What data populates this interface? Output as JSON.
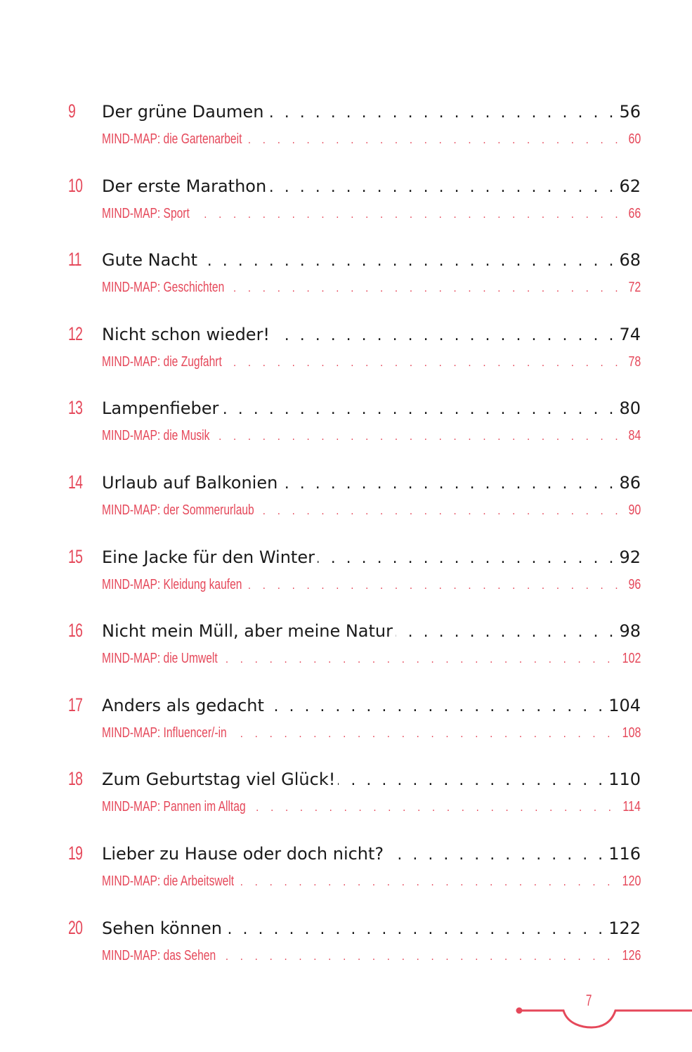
{
  "page": {
    "number": "7",
    "accent_color": "#e5485a",
    "text_color": "#1a1a1a"
  },
  "toc": {
    "entries": [
      {
        "num": "9",
        "title": "Der grüne Daumen",
        "page": "56",
        "sub_prefix": "MIND-MAP:",
        "sub_title": "die Gartenarbeit",
        "sub_page": "60"
      },
      {
        "num": "10",
        "title": "Der erste Marathon",
        "page": "62",
        "sub_prefix": "MIND-MAP:",
        "sub_title": "Sport",
        "sub_page": "66"
      },
      {
        "num": "11",
        "title": "Gute Nacht",
        "page": "68",
        "sub_prefix": "MIND-MAP:",
        "sub_title": "Geschichten",
        "sub_page": "72"
      },
      {
        "num": "12",
        "title": "Nicht schon wieder!",
        "page": "74",
        "sub_prefix": "MIND-MAP:",
        "sub_title": "die Zugfahrt",
        "sub_page": "78"
      },
      {
        "num": "13",
        "title": "Lampenfieber",
        "page": "80",
        "sub_prefix": "MIND-MAP:",
        "sub_title": "die Musik",
        "sub_page": "84"
      },
      {
        "num": "14",
        "title": "Urlaub auf Balkonien",
        "page": "86",
        "sub_prefix": "MIND-MAP:",
        "sub_title": "der Sommerurlaub",
        "sub_page": "90"
      },
      {
        "num": "15",
        "title": "Eine Jacke für den Winter",
        "page": "92",
        "sub_prefix": "MIND-MAP:",
        "sub_title": "Kleidung kaufen",
        "sub_page": "96"
      },
      {
        "num": "16",
        "title": "Nicht mein Müll, aber meine Natur",
        "page": "98",
        "sub_prefix": "MIND-MAP:",
        "sub_title": "die Umwelt",
        "sub_page": "102"
      },
      {
        "num": "17",
        "title": "Anders als gedacht",
        "page": "104",
        "sub_prefix": "MIND-MAP:",
        "sub_title": "Influencer/-in",
        "sub_page": "108"
      },
      {
        "num": "18",
        "title": "Zum Geburtstag viel Glück!",
        "page": "110",
        "sub_prefix": "MIND-MAP:",
        "sub_title": "Pannen im Alltag",
        "sub_page": "114"
      },
      {
        "num": "19",
        "title": "Lieber zu Hause oder doch nicht?",
        "page": "116",
        "sub_prefix": "MIND-MAP:",
        "sub_title": "die Arbeitswelt",
        "sub_page": "120"
      },
      {
        "num": "20",
        "title": "Sehen können",
        "page": "122",
        "sub_prefix": "MIND-MAP:",
        "sub_title": "das Sehen",
        "sub_page": "126"
      }
    ]
  }
}
